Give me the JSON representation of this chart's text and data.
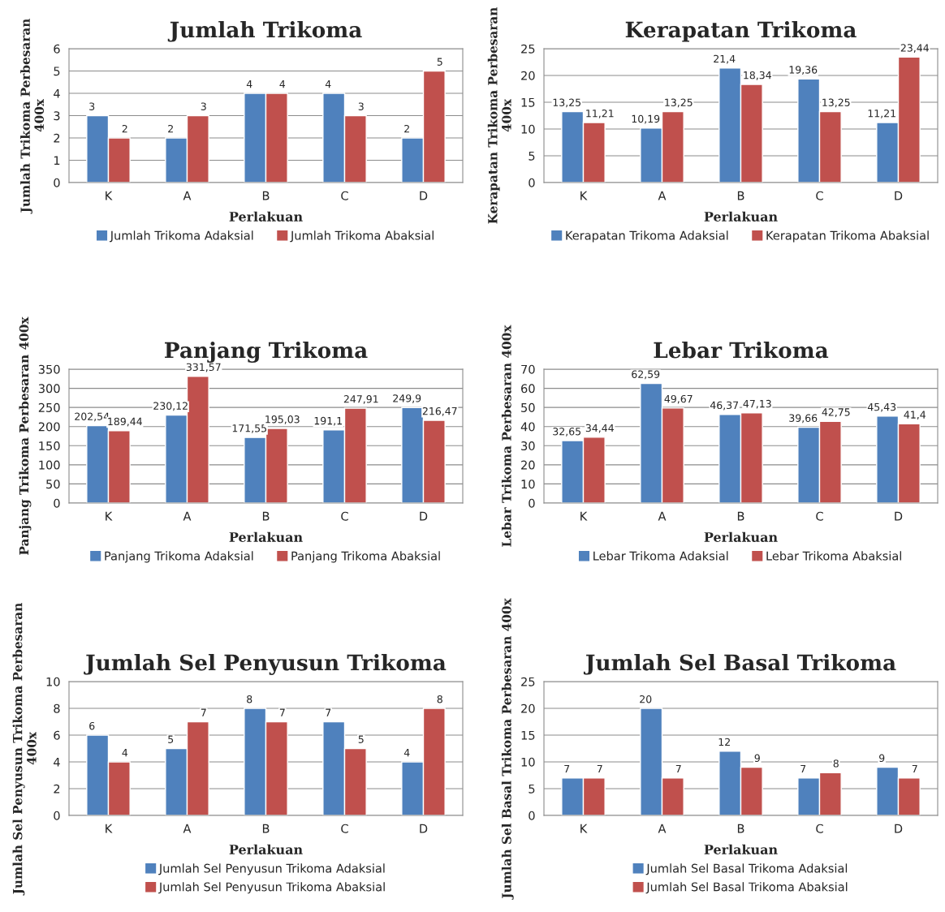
{
  "chart_data": [
    {
      "type": "bar",
      "title": "Jumlah Trikoma",
      "xlabel": "Perlakuan",
      "ylabel": "Jumlah Trikoma Perbesaran 400x",
      "categories": [
        "K",
        "A",
        "B",
        "C",
        "D"
      ],
      "ylim": [
        0,
        6
      ],
      "yticks": [
        0,
        1,
        2,
        3,
        4,
        5,
        6
      ],
      "grid": "y",
      "legend": "bottom",
      "series": [
        {
          "name": "Jumlah Trikoma Adaksial",
          "color": "#4f81bd",
          "values": [
            3,
            2,
            4,
            4,
            2
          ],
          "value_labels": [
            "3",
            "2",
            "4",
            "4",
            "2"
          ]
        },
        {
          "name": "Jumlah Trikoma Abaksial",
          "color": "#c0504d",
          "values": [
            2,
            3,
            4,
            3,
            5
          ],
          "value_labels": [
            "2",
            "3",
            "4",
            "3",
            "5"
          ]
        }
      ]
    },
    {
      "type": "bar",
      "title": "Kerapatan Trikoma",
      "xlabel": "Perlakuan",
      "ylabel": "Kerapatan Trikoma Perbesaran 400x",
      "categories": [
        "K",
        "A",
        "B",
        "C",
        "D"
      ],
      "ylim": [
        0,
        25
      ],
      "yticks": [
        0,
        5,
        10,
        15,
        20,
        25
      ],
      "grid": "y",
      "legend": "bottom",
      "series": [
        {
          "name": "Kerapatan Trikoma Adaksial",
          "color": "#4f81bd",
          "values": [
            13.25,
            10.19,
            21.4,
            19.36,
            11.21
          ],
          "value_labels": [
            "13,25",
            "10,19",
            "21,4",
            "19,36",
            "11,21"
          ]
        },
        {
          "name": "Kerapatan Trikoma Abaksial",
          "color": "#c0504d",
          "values": [
            11.21,
            13.25,
            18.34,
            13.25,
            23.44
          ],
          "value_labels": [
            "11,21",
            "13,25",
            "18,34",
            "13,25",
            "23,44"
          ]
        }
      ]
    },
    {
      "type": "bar",
      "title": "Panjang Trikoma",
      "xlabel": "Perlakuan",
      "ylabel": "Panjang Trikoma Perbesaran 400x",
      "categories": [
        "K",
        "A",
        "B",
        "C",
        "D"
      ],
      "ylim": [
        0,
        350
      ],
      "yticks": [
        0,
        50,
        100,
        150,
        200,
        250,
        300,
        350
      ],
      "grid": "y",
      "legend": "bottom",
      "series": [
        {
          "name": "Panjang Trikoma Adaksial",
          "color": "#4f81bd",
          "values": [
            202.54,
            230.12,
            171.55,
            191.1,
            249.9
          ],
          "value_labels": [
            "202,54",
            "230,12",
            "171,55",
            "191,1",
            "249,9"
          ]
        },
        {
          "name": "Panjang Trikoma Abaksial",
          "color": "#c0504d",
          "values": [
            189.44,
            331.57,
            195.03,
            247.91,
            216.47
          ],
          "value_labels": [
            "189,44",
            "331,57",
            "195,03",
            "247,91",
            "216,47"
          ]
        }
      ]
    },
    {
      "type": "bar",
      "title": "Lebar Trikoma",
      "xlabel": "Perlakuan",
      "ylabel": "Lebar Trikoma Perbesaran 400x",
      "categories": [
        "K",
        "A",
        "B",
        "C",
        "D"
      ],
      "ylim": [
        0,
        70
      ],
      "yticks": [
        0,
        10,
        20,
        30,
        40,
        50,
        60,
        70
      ],
      "grid": "y",
      "legend": "bottom",
      "series": [
        {
          "name": "Lebar Trikoma Adaksial",
          "color": "#4f81bd",
          "values": [
            32.65,
            62.59,
            46.37,
            39.66,
            45.43
          ],
          "value_labels": [
            "32,65",
            "62,59",
            "46,37",
            "39,66",
            "45,43"
          ]
        },
        {
          "name": "Lebar Trikoma Abaksial",
          "color": "#c0504d",
          "values": [
            34.44,
            49.67,
            47.13,
            42.75,
            41.4
          ],
          "value_labels": [
            "34,44",
            "49,67",
            "47,13",
            "42,75",
            "41,4"
          ]
        }
      ]
    },
    {
      "type": "bar",
      "title": "Jumlah Sel Penyusun Trikoma",
      "xlabel": "Perlakuan",
      "ylabel": "Jumlah Sel Penyusun Trikoma Perbesaran 400x",
      "categories": [
        "K",
        "A",
        "B",
        "C",
        "D"
      ],
      "ylim": [
        0,
        10
      ],
      "yticks": [
        0,
        2,
        4,
        6,
        8,
        10
      ],
      "grid": "y",
      "legend": "bottom",
      "series": [
        {
          "name": "Jumlah Sel Penyusun Trikoma Adaksial",
          "color": "#4f81bd",
          "values": [
            6,
            5,
            8,
            7,
            4
          ],
          "value_labels": [
            "6",
            "5",
            "8",
            "7",
            "4"
          ]
        },
        {
          "name": "Jumlah Sel Penyusun Trikoma Abaksial",
          "color": "#c0504d",
          "values": [
            4,
            7,
            7,
            5,
            8
          ],
          "value_labels": [
            "4",
            "7",
            "7",
            "5",
            "8"
          ]
        }
      ]
    },
    {
      "type": "bar",
      "title": "Jumlah Sel Basal Trikoma",
      "xlabel": "Perlakuan",
      "ylabel": "Jumlah Sel Basal Trikoma Perbesaran 400x",
      "categories": [
        "K",
        "A",
        "B",
        "C",
        "D"
      ],
      "ylim": [
        0,
        25
      ],
      "yticks": [
        0,
        5,
        10,
        15,
        20,
        25
      ],
      "grid": "y",
      "legend": "bottom",
      "series": [
        {
          "name": "Jumlah Sel Basal Trikoma Adaksial",
          "color": "#4f81bd",
          "values": [
            7,
            20,
            12,
            7,
            9
          ],
          "value_labels": [
            "7",
            "20",
            "12",
            "7",
            "9"
          ]
        },
        {
          "name": "Jumlah Sel Basal Trikoma Abaksial",
          "color": "#c0504d",
          "values": [
            7,
            7,
            9,
            8,
            7
          ],
          "value_labels": [
            "7",
            "7",
            "9",
            "8",
            "7"
          ]
        }
      ]
    }
  ]
}
